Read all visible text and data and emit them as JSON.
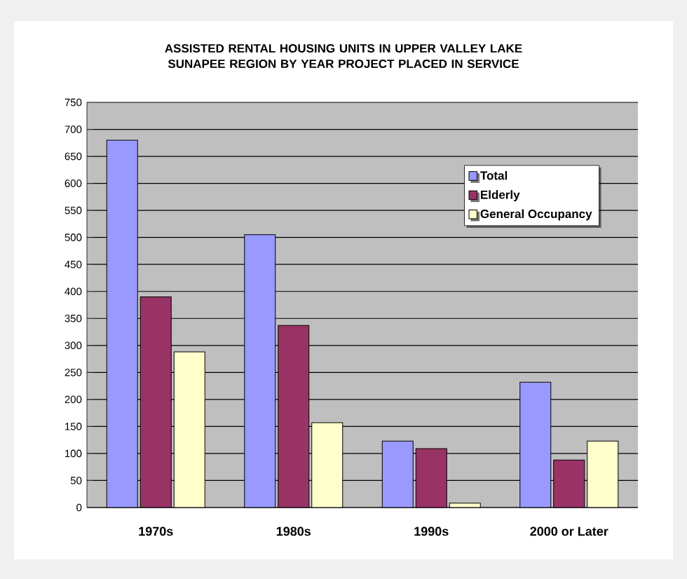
{
  "chart_data": {
    "type": "bar",
    "title": "ASSISTED RENTAL HOUSING UNITS IN UPPER VALLEY LAKE SUNAPEE REGION BY YEAR PROJECT PLACED IN SERVICE",
    "categories": [
      "1970s",
      "1980s",
      "1990s",
      "2000 or Later"
    ],
    "series": [
      {
        "name": "Total",
        "color": "#9999ff",
        "values": [
          680,
          505,
          123,
          232
        ]
      },
      {
        "name": "Elderly",
        "color": "#993366",
        "values": [
          390,
          337,
          109,
          88
        ]
      },
      {
        "name": "General Occupancy",
        "color": "#ffffcc",
        "values": [
          288,
          157,
          8,
          123
        ]
      }
    ],
    "ylim": [
      0,
      750
    ],
    "yticks": [
      0,
      50,
      100,
      150,
      200,
      250,
      300,
      350,
      400,
      450,
      500,
      550,
      600,
      650,
      700,
      750
    ],
    "grid": "y",
    "legend": "top right"
  }
}
